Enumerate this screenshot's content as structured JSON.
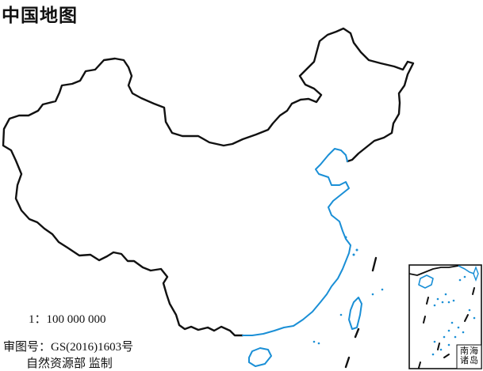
{
  "map": {
    "title": "中国地图",
    "scale": "1：100 000 000",
    "approval_number": "审图号：GS(2016)1603号",
    "supervisor": "自然资源部 监制",
    "inset_label": "南海诸岛",
    "colors": {
      "border": "#111111",
      "coastline": "#1a8fd6",
      "background": "#ffffff"
    }
  }
}
